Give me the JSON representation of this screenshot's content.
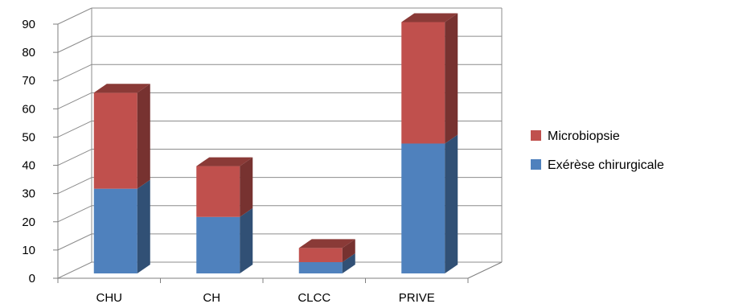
{
  "chart_data": {
    "type": "bar",
    "stacked": true,
    "three_d": true,
    "title": "",
    "xlabel": "",
    "ylabel": "",
    "categories": [
      "CHU",
      "CH",
      "CLCC",
      "PRIVE"
    ],
    "series": [
      {
        "name": "Exérèse chirurgicale",
        "values": [
          30,
          20,
          4,
          46
        ],
        "color": "#4F81BD"
      },
      {
        "name": "Microbiopsie",
        "values": [
          34,
          18,
          5,
          43
        ],
        "color": "#C0504D"
      }
    ],
    "ylim": [
      0,
      90
    ],
    "yticks": [
      0,
      10,
      20,
      30,
      40,
      50,
      60,
      70,
      80,
      90
    ],
    "grid": true,
    "legend_position": "right",
    "legend_order": [
      "Microbiopsie",
      "Exérèse chirurgicale"
    ]
  }
}
